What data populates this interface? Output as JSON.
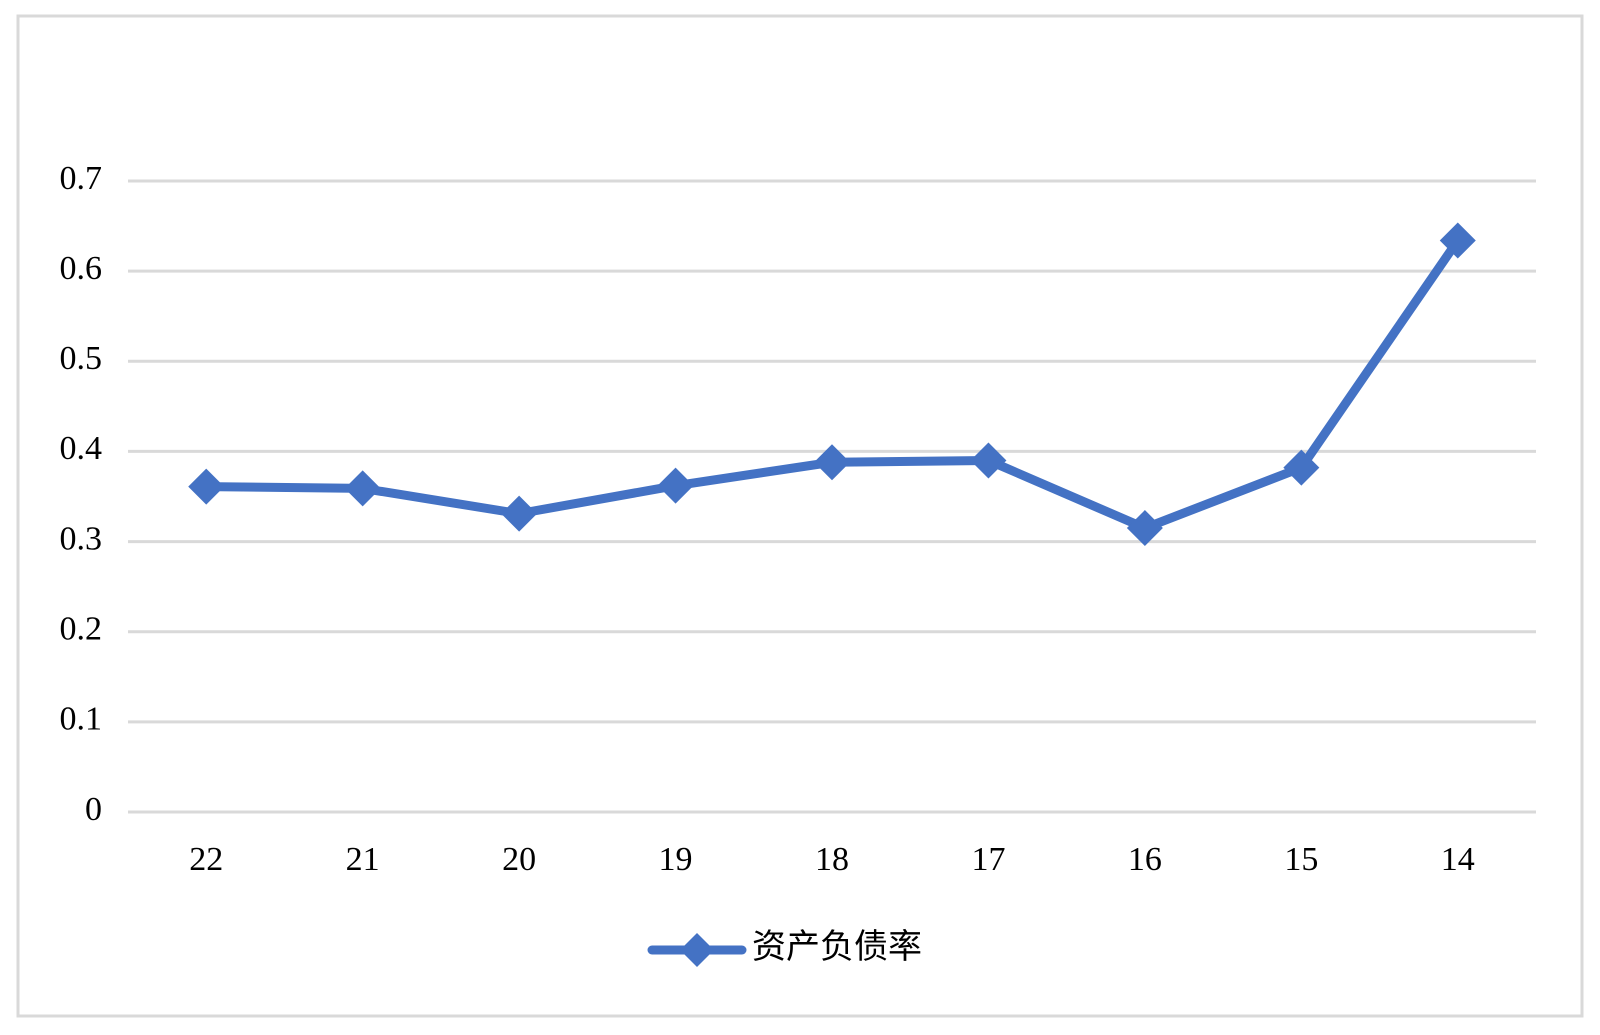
{
  "chart_data": {
    "type": "line",
    "categories": [
      "22",
      "21",
      "20",
      "19",
      "18",
      "17",
      "16",
      "15",
      "14"
    ],
    "series": [
      {
        "name": "资产负债率",
        "color": "#4472c4",
        "values": [
          0.361,
          0.359,
          0.331,
          0.362,
          0.388,
          0.39,
          0.315,
          0.382,
          0.634
        ]
      }
    ],
    "ylim": [
      0,
      0.7
    ],
    "yticks": [
      0,
      0.1,
      0.2,
      0.3,
      0.4,
      0.5,
      0.6,
      0.7
    ],
    "grid": true,
    "legend": "bottom"
  }
}
